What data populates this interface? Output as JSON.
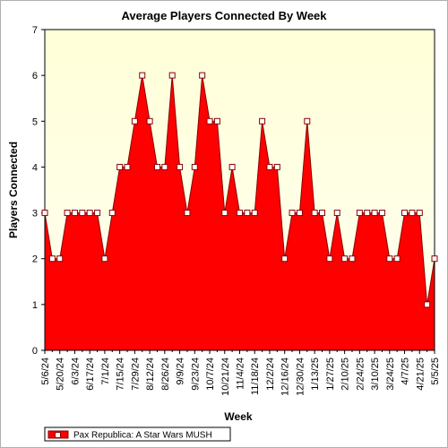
{
  "chart_data": {
    "type": "area",
    "title": "Average Players Connected By Week",
    "xlabel": "Week",
    "ylabel": "Players Connected",
    "ylim": [
      0,
      7
    ],
    "yticks": [
      0,
      1,
      2,
      3,
      4,
      5,
      6,
      7
    ],
    "grid": false,
    "legend_position": "bottom-left",
    "x": [
      "5/6/24",
      "5/13/24",
      "5/20/24",
      "5/27/24",
      "6/3/24",
      "6/10/24",
      "6/17/24",
      "6/24/24",
      "7/1/24",
      "7/8/24",
      "7/15/24",
      "7/22/24",
      "7/29/24",
      "8/5/24",
      "8/12/24",
      "8/19/24",
      "8/26/24",
      "9/2/24",
      "9/9/24",
      "9/16/24",
      "9/23/24",
      "9/30/24",
      "10/7/24",
      "10/14/24",
      "10/21/24",
      "10/28/24",
      "11/4/24",
      "11/11/24",
      "11/18/24",
      "11/25/24",
      "12/2/24",
      "12/9/24",
      "12/16/24",
      "12/23/24",
      "12/30/24",
      "1/6/25",
      "1/13/25",
      "1/20/25",
      "1/27/25",
      "2/3/25",
      "2/10/25",
      "2/17/25",
      "2/24/25",
      "3/3/25",
      "3/10/25",
      "3/17/25",
      "3/24/25",
      "3/31/25",
      "4/7/25",
      "4/14/25",
      "4/21/25",
      "4/28/25",
      "5/5/25"
    ],
    "x_tick_labels": [
      "5/6/24",
      "5/20/24",
      "6/3/24",
      "6/17/24",
      "7/1/24",
      "7/15/24",
      "7/29/24",
      "8/12/24",
      "8/26/24",
      "9/9/24",
      "9/23/24",
      "10/7/24",
      "10/21/24",
      "11/4/24",
      "11/18/24",
      "12/2/24",
      "12/16/24",
      "12/30/24",
      "1/13/25",
      "1/27/25",
      "2/10/25",
      "2/24/25",
      "3/10/25",
      "3/24/25",
      "4/7/25",
      "4/21/25",
      "5/5/25"
    ],
    "series": [
      {
        "name": "Pax Republica: A Star Wars MUSH",
        "color": "#ff0000",
        "values": [
          3,
          2,
          2,
          3,
          3,
          3,
          3,
          3,
          2,
          3,
          4,
          4,
          5,
          6,
          5,
          4,
          4,
          6,
          4,
          3,
          4,
          6,
          5,
          5,
          3,
          4,
          3,
          3,
          3,
          5,
          4,
          4,
          2,
          3,
          3,
          5,
          3,
          3,
          2,
          3,
          2,
          2,
          3,
          3,
          3,
          3,
          2,
          2,
          3,
          3,
          3,
          1,
          2
        ]
      }
    ]
  },
  "colors": {
    "plot_background": "#ffffe0",
    "area_fill": "#ff0000",
    "area_edge": "#8b0000",
    "marker_fill": "#ffffff"
  }
}
